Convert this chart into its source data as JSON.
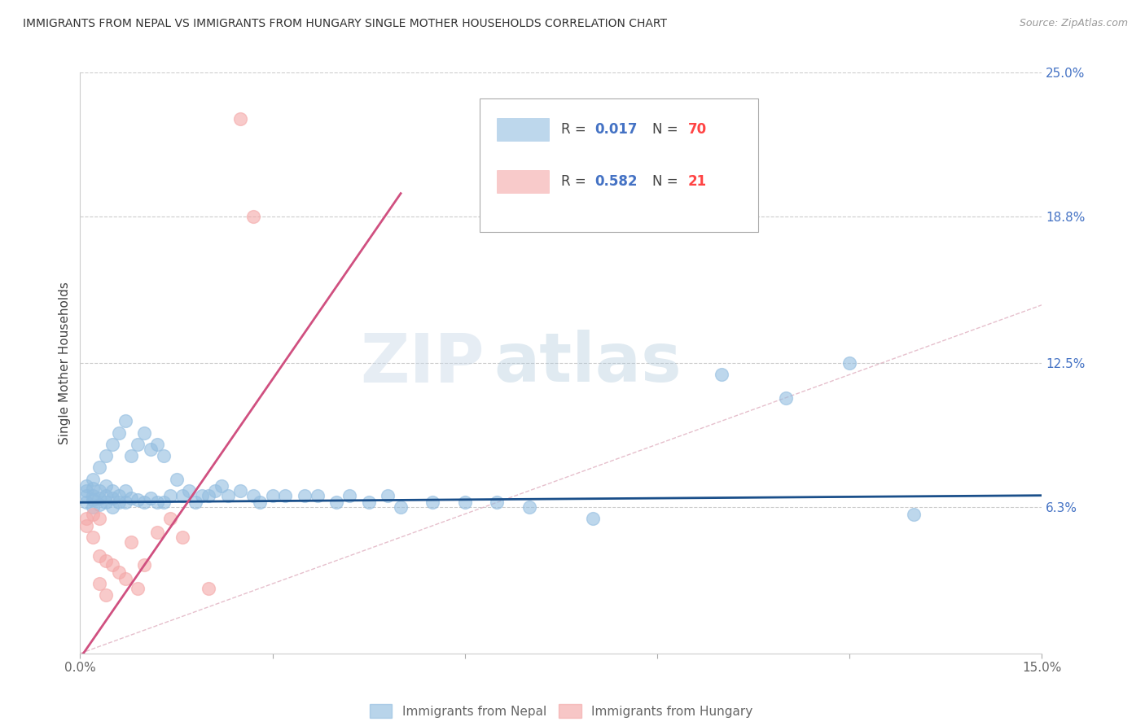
{
  "title": "IMMIGRANTS FROM NEPAL VS IMMIGRANTS FROM HUNGARY SINGLE MOTHER HOUSEHOLDS CORRELATION CHART",
  "source": "Source: ZipAtlas.com",
  "ylabel_label": "Single Mother Households",
  "x_min": 0.0,
  "x_max": 0.15,
  "y_min": 0.0,
  "y_max": 0.25,
  "x_tick_pos": [
    0.0,
    0.03,
    0.06,
    0.09,
    0.12,
    0.15
  ],
  "x_tick_labels": [
    "0.0%",
    "",
    "",
    "",
    "",
    "15.0%"
  ],
  "y_tick_positions_right": [
    0.25,
    0.188,
    0.125,
    0.063
  ],
  "y_tick_labels_right": [
    "25.0%",
    "18.8%",
    "12.5%",
    "6.3%"
  ],
  "nepal_color": "#92bde0",
  "nepal_color_line": "#1a4f8a",
  "hungary_color": "#f4a8a8",
  "hungary_color_line": "#d05080",
  "diagonal_color": "#d0b0b8",
  "nepal_R": "0.017",
  "nepal_N": "70",
  "hungary_R": "0.582",
  "hungary_N": "21",
  "nepal_x": [
    0.001,
    0.001,
    0.001,
    0.001,
    0.002,
    0.002,
    0.002,
    0.002,
    0.002,
    0.003,
    0.003,
    0.003,
    0.003,
    0.004,
    0.004,
    0.004,
    0.004,
    0.005,
    0.005,
    0.005,
    0.005,
    0.006,
    0.006,
    0.006,
    0.007,
    0.007,
    0.007,
    0.008,
    0.008,
    0.009,
    0.009,
    0.01,
    0.01,
    0.011,
    0.011,
    0.012,
    0.012,
    0.013,
    0.013,
    0.014,
    0.015,
    0.016,
    0.017,
    0.018,
    0.019,
    0.02,
    0.021,
    0.022,
    0.023,
    0.025,
    0.027,
    0.028,
    0.03,
    0.032,
    0.035,
    0.037,
    0.04,
    0.042,
    0.045,
    0.048,
    0.05,
    0.055,
    0.06,
    0.065,
    0.07,
    0.08,
    0.1,
    0.11,
    0.12,
    0.13
  ],
  "nepal_y": [
    0.065,
    0.068,
    0.07,
    0.072,
    0.063,
    0.066,
    0.068,
    0.071,
    0.075,
    0.064,
    0.067,
    0.07,
    0.08,
    0.065,
    0.068,
    0.072,
    0.085,
    0.063,
    0.067,
    0.07,
    0.09,
    0.065,
    0.068,
    0.095,
    0.065,
    0.07,
    0.1,
    0.067,
    0.085,
    0.066,
    0.09,
    0.065,
    0.095,
    0.067,
    0.088,
    0.065,
    0.09,
    0.065,
    0.085,
    0.068,
    0.075,
    0.068,
    0.07,
    0.065,
    0.068,
    0.068,
    0.07,
    0.072,
    0.068,
    0.07,
    0.068,
    0.065,
    0.068,
    0.068,
    0.068,
    0.068,
    0.065,
    0.068,
    0.065,
    0.068,
    0.063,
    0.065,
    0.065,
    0.065,
    0.063,
    0.058,
    0.12,
    0.11,
    0.125,
    0.06
  ],
  "hungary_x": [
    0.001,
    0.001,
    0.002,
    0.002,
    0.003,
    0.003,
    0.003,
    0.004,
    0.004,
    0.005,
    0.006,
    0.007,
    0.008,
    0.009,
    0.01,
    0.012,
    0.014,
    0.016,
    0.02,
    0.025,
    0.027
  ],
  "hungary_y": [
    0.058,
    0.055,
    0.06,
    0.05,
    0.058,
    0.042,
    0.03,
    0.04,
    0.025,
    0.038,
    0.035,
    0.032,
    0.048,
    0.028,
    0.038,
    0.052,
    0.058,
    0.05,
    0.028,
    0.23,
    0.188
  ],
  "nepal_trend_x": [
    0.0,
    0.15
  ],
  "nepal_trend_y": [
    0.065,
    0.068
  ],
  "hungary_trend_x": [
    0.0,
    0.05
  ],
  "hungary_trend_y": [
    -0.002,
    0.198
  ],
  "watermark_zip": "ZIP",
  "watermark_atlas": "atlas",
  "legend_color_nepal": "#92bde0",
  "legend_color_hungary": "#f4a8a8"
}
